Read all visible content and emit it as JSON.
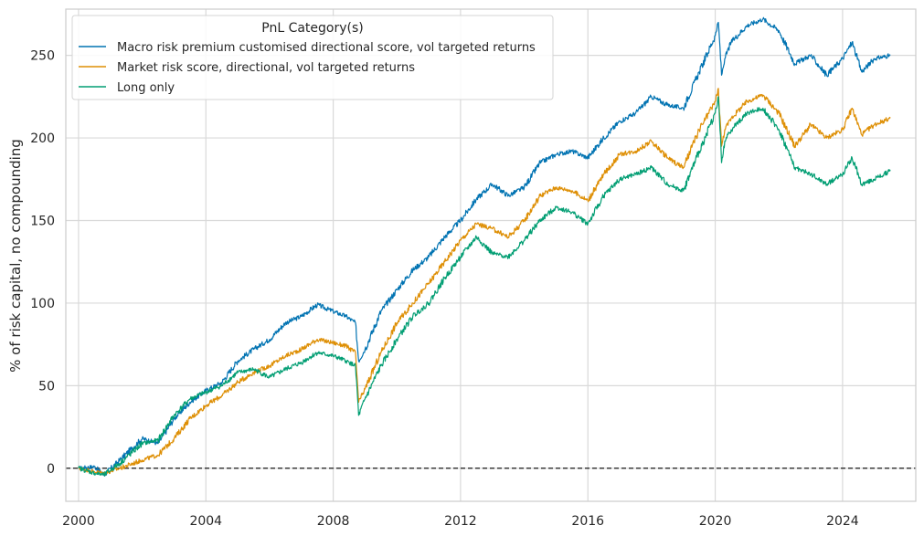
{
  "chart_data": {
    "type": "line",
    "title": "",
    "xlabel": "",
    "ylabel": "% of risk capital, no compounding",
    "xlim": [
      1999.6,
      2026.3
    ],
    "ylim": [
      -20,
      278
    ],
    "xticks": [
      2000,
      2004,
      2008,
      2012,
      2016,
      2020,
      2024
    ],
    "xtick_labels": [
      "2000",
      "2004",
      "2008",
      "2012",
      "2016",
      "2020",
      "2024"
    ],
    "yticks": [
      0,
      50,
      100,
      150,
      200,
      250
    ],
    "ytick_labels": [
      "0",
      "50",
      "100",
      "150",
      "200",
      "250"
    ],
    "grid": true,
    "reference_line": {
      "y": 0,
      "style": "dashed",
      "color": "#000000"
    },
    "legend": {
      "title": "PnL Category(s)",
      "placement": "top-left"
    },
    "series": [
      {
        "name": "Macro risk premium customised directional score, vol targeted returns",
        "color": "#0173b2",
        "x": [
          2000.0,
          2000.5,
          2000.8,
          2001.3,
          2002.0,
          2002.5,
          2003.0,
          2003.5,
          2004.0,
          2004.5,
          2005.0,
          2005.5,
          2006.0,
          2006.5,
          2007.0,
          2007.5,
          2008.0,
          2008.4,
          2008.7,
          2008.8,
          2009.0,
          2009.5,
          2010.0,
          2010.5,
          2011.0,
          2011.5,
          2012.0,
          2012.5,
          2013.0,
          2013.5,
          2014.0,
          2014.5,
          2015.0,
          2015.5,
          2016.0,
          2016.5,
          2017.0,
          2017.5,
          2018.0,
          2018.5,
          2019.0,
          2019.5,
          2020.0,
          2020.1,
          2020.2,
          2020.3,
          2020.5,
          2021.0,
          2021.5,
          2022.0,
          2022.5,
          2023.0,
          2023.5,
          2024.0,
          2024.3,
          2024.6,
          2025.0,
          2025.5
        ],
        "y": [
          0,
          1,
          -4,
          5,
          18,
          15,
          30,
          40,
          47,
          52,
          65,
          72,
          78,
          88,
          92,
          99,
          95,
          92,
          88,
          65,
          72,
          95,
          108,
          120,
          128,
          140,
          150,
          163,
          172,
          165,
          170,
          185,
          190,
          192,
          188,
          200,
          210,
          215,
          225,
          220,
          218,
          240,
          262,
          270,
          238,
          248,
          258,
          268,
          272,
          265,
          245,
          250,
          238,
          248,
          258,
          240,
          248,
          250
        ]
      },
      {
        "name": "Market risk score, directional, vol targeted returns",
        "color": "#de8f05",
        "x": [
          2000.0,
          2000.5,
          2000.8,
          2001.3,
          2002.0,
          2002.5,
          2003.0,
          2003.5,
          2004.0,
          2004.5,
          2005.0,
          2005.5,
          2006.0,
          2006.5,
          2007.0,
          2007.5,
          2008.0,
          2008.4,
          2008.7,
          2008.8,
          2009.0,
          2009.5,
          2010.0,
          2010.5,
          2011.0,
          2011.5,
          2012.0,
          2012.5,
          2013.0,
          2013.5,
          2014.0,
          2014.5,
          2015.0,
          2015.5,
          2016.0,
          2016.5,
          2017.0,
          2017.5,
          2018.0,
          2018.5,
          2019.0,
          2019.5,
          2020.0,
          2020.1,
          2020.2,
          2020.3,
          2020.5,
          2021.0,
          2021.5,
          2022.0,
          2022.5,
          2023.0,
          2023.5,
          2024.0,
          2024.3,
          2024.6,
          2025.0,
          2025.5
        ],
        "y": [
          0,
          -2,
          -3,
          0,
          5,
          8,
          18,
          30,
          38,
          44,
          52,
          58,
          62,
          68,
          72,
          78,
          76,
          74,
          70,
          40,
          48,
          70,
          88,
          100,
          112,
          125,
          138,
          148,
          145,
          140,
          150,
          165,
          170,
          168,
          162,
          178,
          190,
          192,
          198,
          188,
          182,
          205,
          222,
          230,
          195,
          205,
          212,
          222,
          226,
          215,
          195,
          208,
          200,
          205,
          218,
          202,
          208,
          212
        ]
      },
      {
        "name": "Long only",
        "color": "#029e73",
        "x": [
          2000.0,
          2000.5,
          2000.8,
          2001.3,
          2002.0,
          2002.5,
          2003.0,
          2003.5,
          2004.0,
          2004.5,
          2005.0,
          2005.5,
          2006.0,
          2006.5,
          2007.0,
          2007.5,
          2008.0,
          2008.4,
          2008.7,
          2008.8,
          2009.0,
          2009.5,
          2010.0,
          2010.5,
          2011.0,
          2011.5,
          2012.0,
          2012.5,
          2013.0,
          2013.5,
          2014.0,
          2014.5,
          2015.0,
          2015.5,
          2016.0,
          2016.5,
          2017.0,
          2017.5,
          2018.0,
          2018.5,
          2019.0,
          2019.5,
          2020.0,
          2020.1,
          2020.2,
          2020.3,
          2020.5,
          2021.0,
          2021.5,
          2022.0,
          2022.5,
          2023.0,
          2023.5,
          2024.0,
          2024.3,
          2024.6,
          2025.0,
          2025.5
        ],
        "y": [
          0,
          -3,
          -4,
          3,
          15,
          17,
          32,
          42,
          46,
          50,
          58,
          60,
          55,
          60,
          64,
          70,
          68,
          65,
          62,
          32,
          42,
          62,
          78,
          92,
          100,
          115,
          128,
          140,
          130,
          128,
          138,
          150,
          158,
          155,
          148,
          165,
          175,
          178,
          182,
          172,
          168,
          192,
          215,
          225,
          185,
          198,
          205,
          215,
          218,
          205,
          182,
          178,
          172,
          178,
          188,
          172,
          175,
          180
        ]
      }
    ]
  }
}
